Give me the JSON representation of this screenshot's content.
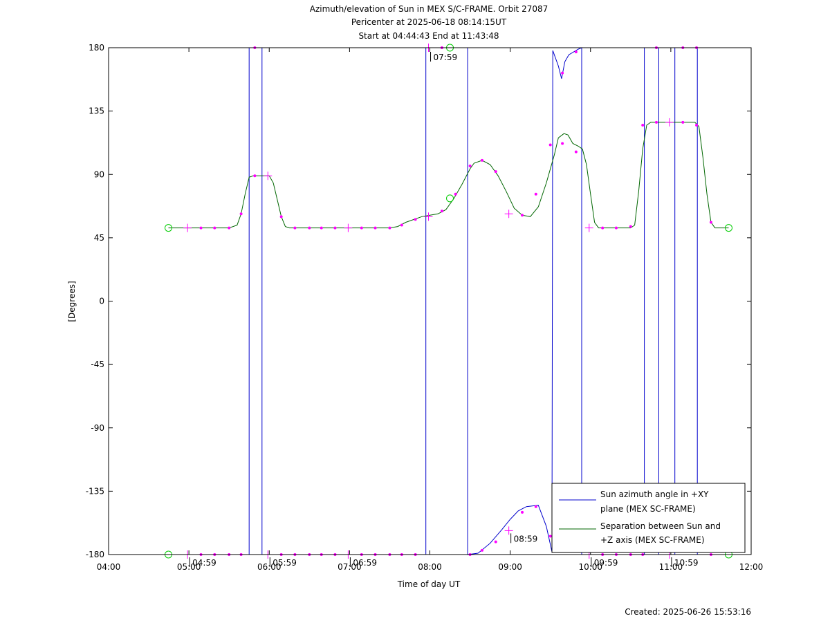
{
  "chart_data": {
    "type": "line",
    "title_lines": [
      "Azimuth/elevation of Sun in MEX S/C-FRAME.  Orbit 27087",
      "Pericenter at 2025-06-18 08:14:15UT",
      "Start at 04:44:43 End at 11:43:48"
    ],
    "xlabel": "Time of day UT",
    "ylabel": "[Degrees]",
    "xlim": [
      4.0,
      12.0
    ],
    "ylim": [
      -180,
      180
    ],
    "x_ticks": [
      {
        "value": 4,
        "label": "04:00"
      },
      {
        "value": 5,
        "label": "05:00"
      },
      {
        "value": 6,
        "label": "06:00"
      },
      {
        "value": 7,
        "label": "07:00"
      },
      {
        "value": 8,
        "label": "08:00"
      },
      {
        "value": 9,
        "label": "09:00"
      },
      {
        "value": 10,
        "label": "10:00"
      },
      {
        "value": 11,
        "label": "11:00"
      },
      {
        "value": 12,
        "label": "12:00"
      }
    ],
    "y_ticks": [
      {
        "value": 180,
        "label": "180"
      },
      {
        "value": 135,
        "label": "135"
      },
      {
        "value": 90,
        "label": "90"
      },
      {
        "value": 45,
        "label": "45"
      },
      {
        "value": 0,
        "label": "0"
      },
      {
        "value": -45,
        "label": "-45"
      },
      {
        "value": -90,
        "label": "-90"
      },
      {
        "value": -135,
        "label": "-135"
      },
      {
        "value": -180,
        "label": "-180"
      }
    ],
    "grid": false,
    "legend_position": "bottom-right",
    "legend": [
      {
        "label_lines": [
          "Sun azimuth angle in +XY",
          "plane (MEX SC-FRAME)"
        ],
        "color": "#0000cc"
      },
      {
        "label_lines": [
          "Separation between Sun and",
          "+Z axis (MEX SC-FRAME)"
        ],
        "color": "#006600"
      }
    ],
    "hour_annotations": [
      {
        "x": 4.983,
        "y": -180,
        "label": "04:59"
      },
      {
        "x": 5.983,
        "y": -180,
        "label": "05:59"
      },
      {
        "x": 6.983,
        "y": -180,
        "label": "06:59"
      },
      {
        "x": 7.983,
        "y": 180,
        "label": "07:59"
      },
      {
        "x": 8.983,
        "y": -163,
        "label": "08:59"
      },
      {
        "x": 9.983,
        "y": -180,
        "label": "09:59"
      },
      {
        "x": 10.983,
        "y": -180,
        "label": "10:59"
      }
    ],
    "series": [
      {
        "name": "Sun azimuth angle in +XY plane (MEX SC-FRAME)",
        "color": "#0000cc",
        "segments": [
          [
            [
              4.745,
              -180
            ],
            [
              5.75,
              -180
            ],
            [
              5.75,
              180
            ]
          ],
          [
            [
              5.75,
              180
            ],
            [
              5.91,
              180
            ]
          ],
          [
            [
              5.91,
              180
            ],
            [
              5.91,
              -180
            ],
            [
              7.95,
              -180
            ],
            [
              7.95,
              180
            ]
          ],
          [
            [
              7.95,
              180
            ],
            [
              8.47,
              180
            ]
          ],
          [
            [
              8.47,
              180
            ],
            [
              8.47,
              -180
            ],
            [
              8.6,
              -179
            ],
            [
              8.75,
              -172
            ],
            [
              8.9,
              -162
            ],
            [
              9.0,
              -155
            ],
            [
              9.1,
              -149
            ],
            [
              9.2,
              -146
            ],
            [
              9.35,
              -145
            ],
            [
              9.45,
              -160
            ],
            [
              9.52,
              -178
            ],
            [
              9.53,
              178
            ],
            [
              9.6,
              167
            ],
            [
              9.64,
              158
            ],
            [
              9.68,
              170
            ],
            [
              9.73,
              175
            ],
            [
              9.85,
              179
            ],
            [
              9.89,
              180
            ],
            [
              9.89,
              -180
            ],
            [
              10.67,
              -180
            ],
            [
              10.67,
              180
            ]
          ],
          [
            [
              10.67,
              180
            ],
            [
              10.85,
              180
            ]
          ],
          [
            [
              10.85,
              180
            ],
            [
              10.85,
              -180
            ],
            [
              11.05,
              -180
            ],
            [
              11.05,
              180
            ]
          ],
          [
            [
              11.05,
              180
            ],
            [
              11.33,
              180
            ]
          ],
          [
            [
              11.33,
              180
            ],
            [
              11.33,
              -180
            ],
            [
              11.72,
              -180
            ]
          ]
        ]
      },
      {
        "name": "Separation between Sun and +Z axis (MEX SC-FRAME)",
        "color": "#006600",
        "points": [
          [
            4.745,
            52
          ],
          [
            5.5,
            52
          ],
          [
            5.6,
            54
          ],
          [
            5.65,
            62
          ],
          [
            5.7,
            76
          ],
          [
            5.75,
            88
          ],
          [
            5.8,
            89
          ],
          [
            6.0,
            89
          ],
          [
            6.05,
            84
          ],
          [
            6.1,
            72
          ],
          [
            6.15,
            60
          ],
          [
            6.2,
            53
          ],
          [
            6.25,
            52
          ],
          [
            7.5,
            52
          ],
          [
            7.6,
            53
          ],
          [
            7.7,
            56
          ],
          [
            7.8,
            58
          ],
          [
            7.9,
            60
          ],
          [
            8.0,
            61
          ],
          [
            8.1,
            62
          ],
          [
            8.2,
            65
          ],
          [
            8.3,
            73
          ],
          [
            8.4,
            83
          ],
          [
            8.5,
            94
          ],
          [
            8.55,
            98
          ],
          [
            8.65,
            100
          ],
          [
            8.75,
            97
          ],
          [
            8.85,
            89
          ],
          [
            8.95,
            78
          ],
          [
            9.05,
            66
          ],
          [
            9.15,
            61
          ],
          [
            9.25,
            60
          ],
          [
            9.35,
            67
          ],
          [
            9.45,
            84
          ],
          [
            9.55,
            104
          ],
          [
            9.6,
            116
          ],
          [
            9.67,
            119
          ],
          [
            9.72,
            118
          ],
          [
            9.78,
            112
          ],
          [
            9.85,
            110
          ],
          [
            9.9,
            108
          ],
          [
            9.95,
            97
          ],
          [
            10.0,
            76
          ],
          [
            10.05,
            56
          ],
          [
            10.1,
            52
          ],
          [
            10.5,
            52
          ],
          [
            10.55,
            54
          ],
          [
            10.6,
            78
          ],
          [
            10.65,
            108
          ],
          [
            10.7,
            125
          ],
          [
            10.75,
            127
          ],
          [
            11.3,
            127
          ],
          [
            11.35,
            124
          ],
          [
            11.4,
            102
          ],
          [
            11.45,
            76
          ],
          [
            11.5,
            56
          ],
          [
            11.55,
            52
          ],
          [
            11.72,
            52
          ]
        ]
      }
    ],
    "markers": {
      "color": "#ff00ff",
      "start_end_color": "#00cc00",
      "start_end": [
        [
          4.745,
          52
        ],
        [
          11.72,
          52
        ],
        [
          4.745,
          -180
        ],
        [
          11.72,
          -180
        ],
        [
          8.25,
          180
        ],
        [
          8.25,
          73
        ]
      ],
      "crosses": [
        [
          4.983,
          52
        ],
        [
          5.983,
          89
        ],
        [
          6.983,
          52
        ],
        [
          7.983,
          60
        ],
        [
          8.983,
          62
        ],
        [
          9.983,
          52
        ],
        [
          10.983,
          127
        ],
        [
          4.983,
          -180
        ],
        [
          5.983,
          -180
        ],
        [
          6.983,
          -180
        ],
        [
          7.983,
          180
        ],
        [
          8.983,
          -163
        ],
        [
          9.983,
          -180
        ],
        [
          10.983,
          -180
        ]
      ],
      "dots": [
        [
          5.15,
          52
        ],
        [
          5.32,
          52
        ],
        [
          5.5,
          52
        ],
        [
          5.65,
          62
        ],
        [
          5.82,
          89
        ],
        [
          6.15,
          60
        ],
        [
          6.32,
          52
        ],
        [
          6.5,
          52
        ],
        [
          6.65,
          52
        ],
        [
          6.82,
          52
        ],
        [
          7.15,
          52
        ],
        [
          7.32,
          52
        ],
        [
          7.5,
          52
        ],
        [
          7.65,
          54
        ],
        [
          7.82,
          58
        ],
        [
          8.15,
          64
        ],
        [
          8.32,
          76
        ],
        [
          8.5,
          96
        ],
        [
          8.65,
          100
        ],
        [
          8.82,
          92
        ],
        [
          9.15,
          61
        ],
        [
          9.32,
          76
        ],
        [
          9.5,
          111
        ],
        [
          9.65,
          112
        ],
        [
          9.82,
          106
        ],
        [
          10.15,
          52
        ],
        [
          10.32,
          52
        ],
        [
          10.5,
          53
        ],
        [
          10.65,
          125
        ],
        [
          10.82,
          127
        ],
        [
          11.15,
          127
        ],
        [
          11.32,
          125
        ],
        [
          11.5,
          56
        ],
        [
          5.15,
          -180
        ],
        [
          5.32,
          -180
        ],
        [
          5.5,
          -180
        ],
        [
          5.65,
          -180
        ],
        [
          6.15,
          -180
        ],
        [
          6.32,
          -180
        ],
        [
          6.5,
          -180
        ],
        [
          6.65,
          -180
        ],
        [
          6.82,
          -180
        ],
        [
          7.15,
          -180
        ],
        [
          7.32,
          -180
        ],
        [
          7.5,
          -180
        ],
        [
          7.65,
          -180
        ],
        [
          7.82,
          -180
        ],
        [
          8.15,
          180
        ],
        [
          8.5,
          -180
        ],
        [
          8.65,
          -177
        ],
        [
          8.82,
          -171
        ],
        [
          9.15,
          -150
        ],
        [
          9.32,
          -146
        ],
        [
          9.5,
          -167
        ],
        [
          9.65,
          162
        ],
        [
          9.82,
          177
        ],
        [
          10.15,
          -180
        ],
        [
          10.32,
          -180
        ],
        [
          10.5,
          -180
        ],
        [
          10.65,
          -180
        ],
        [
          10.82,
          180
        ],
        [
          11.15,
          180
        ],
        [
          11.32,
          180
        ],
        [
          11.5,
          -180
        ],
        [
          5.82,
          180
        ]
      ]
    }
  },
  "footer": {
    "created": "Created: 2025-06-26 15:53:16"
  }
}
